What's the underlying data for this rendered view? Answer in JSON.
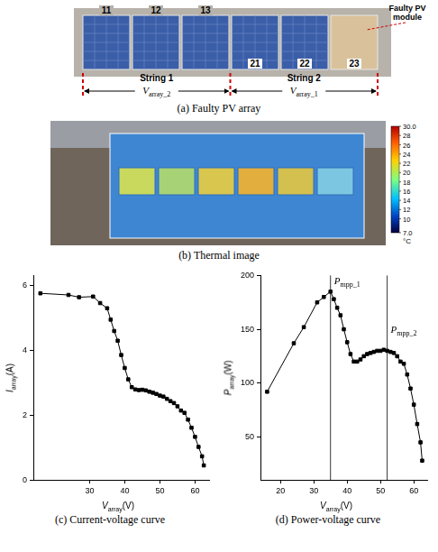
{
  "figure": {
    "panel_a": {
      "caption": "(a) Faulty PV array",
      "annotation": "Faulty PV module",
      "modules": {
        "string_1": [
          "11",
          "12",
          "13"
        ],
        "string_2": [
          "21",
          "22",
          "23"
        ]
      },
      "faulty": "23",
      "strings": [
        "String 1",
        "String 2"
      ],
      "voltages": [
        {
          "symbol": "V",
          "subscript": "array_2"
        },
        {
          "symbol": "V",
          "subscript": "array_1"
        }
      ]
    },
    "panel_b": {
      "caption": "(b) Thermal image",
      "colorbar": {
        "range": [
          7,
          30
        ],
        "ticks": [
          {
            "value": 30,
            "label": "30.0"
          },
          28,
          26,
          24,
          22,
          20,
          18,
          16,
          14,
          12,
          10,
          {
            "value": 7,
            "label": "7.0"
          }
        ],
        "unit": "°C"
      }
    }
  },
  "chart_data": [
    {
      "type": "line",
      "caption": "(c) Current-voltage curve",
      "xlabel": {
        "symbol": "V",
        "subscript": "array",
        "unit": "(V)"
      },
      "ylabel": {
        "symbol": "I",
        "subscript": "array",
        "unit": "(A)"
      },
      "x": [
        16,
        24,
        27,
        31,
        33,
        35,
        36,
        37,
        38,
        39,
        40,
        41,
        42,
        43,
        44,
        45,
        46,
        47,
        48,
        49,
        50,
        51,
        52,
        53,
        54,
        55,
        56,
        57,
        58,
        59,
        60,
        61,
        62,
        62.5
      ],
      "series": [
        {
          "color": "#000000",
          "marker": "square",
          "line_style": "solid",
          "values": [
            5.75,
            5.7,
            5.63,
            5.65,
            5.45,
            5.29,
            4.94,
            4.59,
            4.29,
            3.85,
            3.45,
            3.1,
            2.86,
            2.79,
            2.77,
            2.78,
            2.76,
            2.72,
            2.69,
            2.65,
            2.6,
            2.57,
            2.5,
            2.43,
            2.37,
            2.27,
            2.14,
            2.07,
            1.86,
            1.61,
            1.33,
            1.02,
            0.73,
            0.45
          ]
        }
      ],
      "xlim": [
        14,
        64
      ],
      "xticks": [
        30,
        40,
        50,
        60
      ],
      "ylim": [
        0,
        6.3
      ],
      "yticks": [
        0,
        2,
        4,
        6
      ],
      "grid": false
    },
    {
      "type": "line",
      "caption": "(d) Power-voltage curve",
      "xlabel": {
        "symbol": "V",
        "subscript": "array",
        "unit": "(V)"
      },
      "ylabel": {
        "symbol": "P",
        "subscript": "array",
        "unit": "(W)"
      },
      "x": [
        16,
        24,
        27,
        31,
        33,
        35,
        36,
        37,
        38,
        39,
        40,
        41,
        42,
        43,
        44,
        45,
        46,
        47,
        48,
        49,
        50,
        51,
        52,
        53,
        54,
        55,
        56,
        57,
        58,
        59,
        60,
        61,
        62,
        62.5
      ],
      "series": [
        {
          "color": "#000000",
          "marker": "square",
          "line_style": "solid",
          "values": [
            92,
            137,
            152,
            175,
            180,
            185,
            178,
            170,
            163,
            150,
            138,
            127,
            120,
            120,
            122,
            125,
            127,
            128,
            129,
            130,
            130,
            131,
            130,
            129,
            128,
            125,
            120,
            118,
            108,
            95,
            80,
            62,
            45,
            28
          ]
        }
      ],
      "annotations": [
        {
          "x": 35,
          "symbol": "P",
          "subscript": "mpp_1"
        },
        {
          "x": 52,
          "symbol": "P",
          "subscript": "mpp_2"
        }
      ],
      "xlim": [
        14,
        64
      ],
      "xticks": [
        20,
        30,
        40,
        50,
        60
      ],
      "ylim": [
        10,
        200
      ],
      "yticks": [
        50,
        100,
        150,
        200
      ],
      "grid": false
    }
  ]
}
